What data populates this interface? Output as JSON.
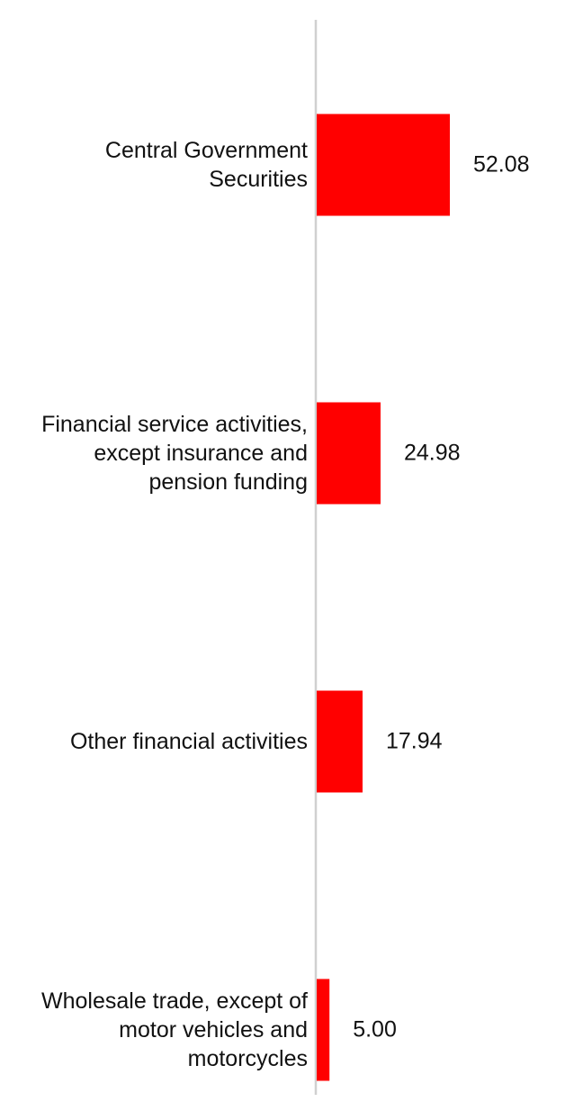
{
  "chart_data": {
    "type": "barh",
    "categories": [
      "Central Government Securities",
      "Financial service activities, except insurance and pension funding",
      "Other financial activities",
      "Wholesale trade, except of motor vehicles and motorcycles"
    ],
    "values": [
      52.08,
      24.98,
      17.94,
      5.0
    ],
    "value_labels": [
      "52.08",
      "24.98",
      "17.94",
      "5.00"
    ],
    "color": "#ff0000"
  }
}
